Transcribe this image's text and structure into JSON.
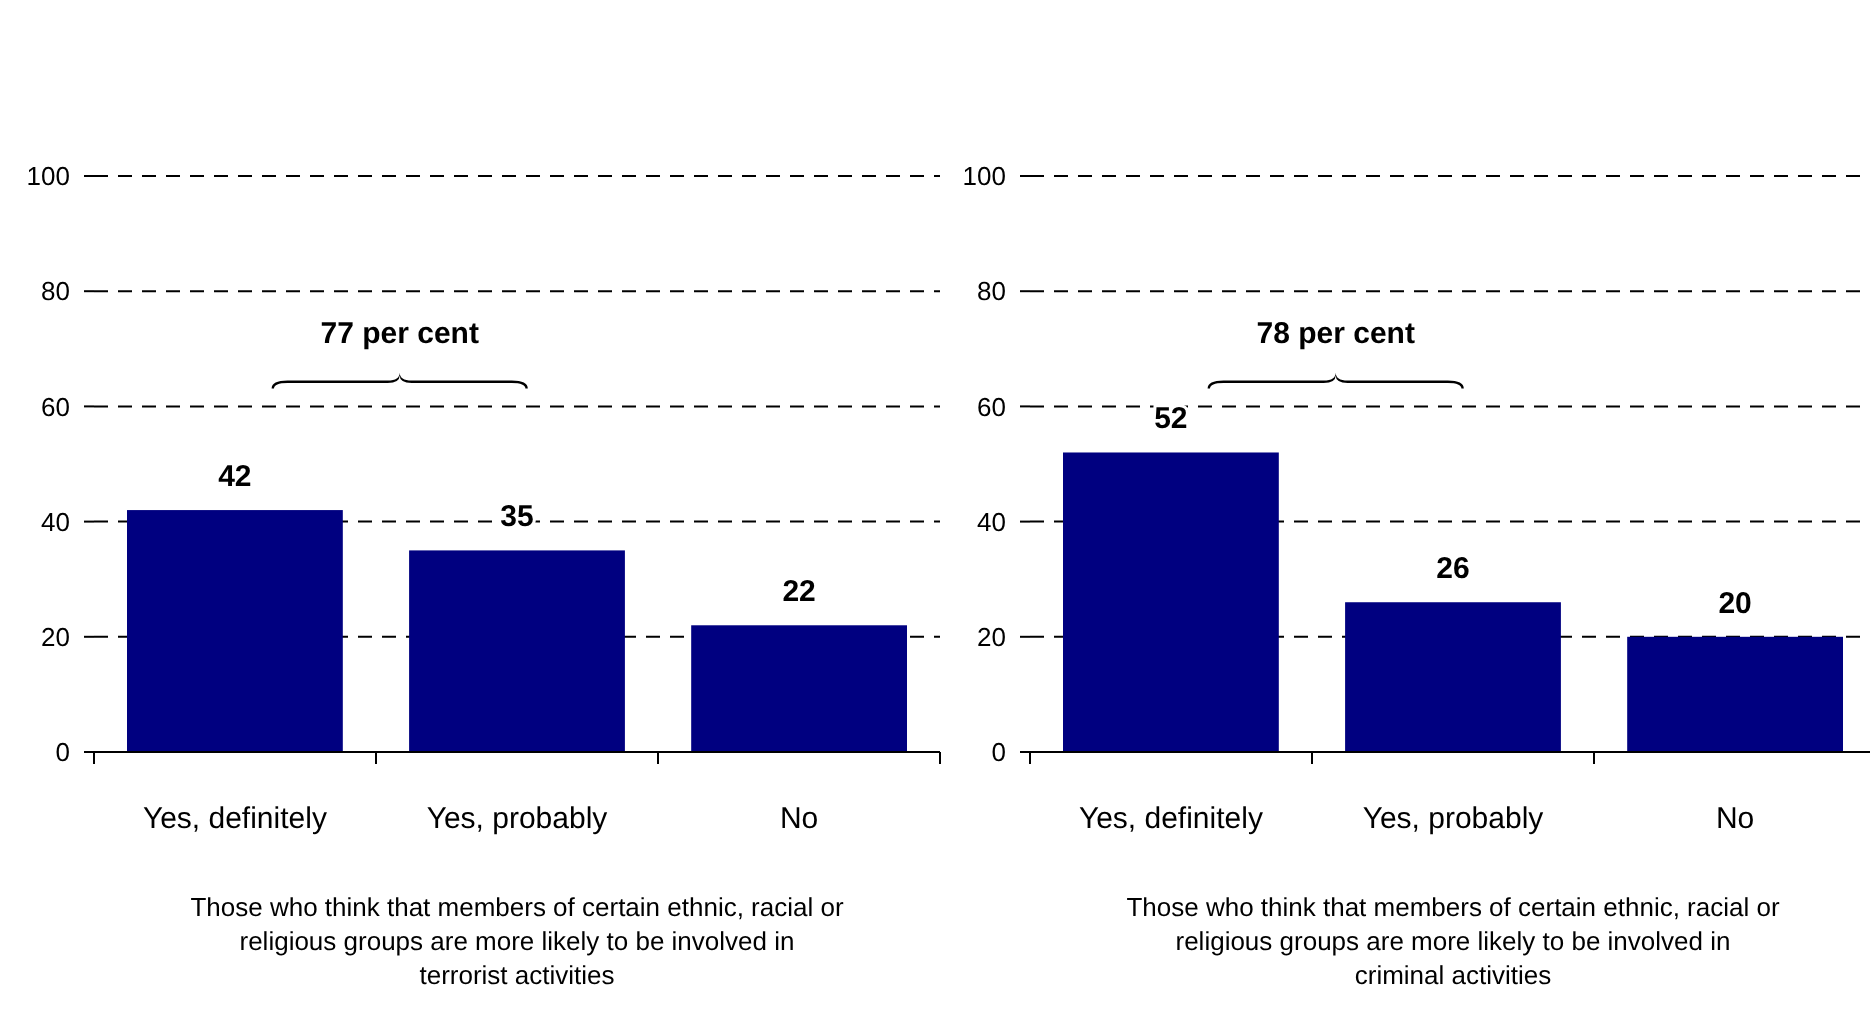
{
  "chart_data": [
    {
      "type": "bar",
      "categories": [
        "Yes, definitely",
        "Yes, probably",
        "No"
      ],
      "values": [
        42,
        35,
        22
      ],
      "color": "#000080",
      "ylim": [
        0,
        100
      ],
      "yticks": [
        0,
        20,
        40,
        60,
        80,
        100
      ],
      "grid": "y",
      "data_labels": true,
      "xlabel": "Those who think that members of certain ethnic, racial or religious groups are more likely to be involved in terrorist activities",
      "annotations": [
        "77 per cent"
      ]
    },
    {
      "type": "bar",
      "categories": [
        "Yes, definitely",
        "Yes, probably",
        "No"
      ],
      "values": [
        52,
        26,
        20
      ],
      "color": "#000080",
      "ylim": [
        0,
        100
      ],
      "yticks": [
        0,
        20,
        40,
        60,
        80,
        100
      ],
      "grid": "y",
      "data_labels": true,
      "xlabel": "Those who think that members of certain ethnic, racial or religious groups are more likely to be involved in criminal activities",
      "annotations": [
        "78 per cent"
      ]
    }
  ]
}
